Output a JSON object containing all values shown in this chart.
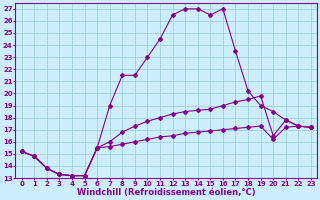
{
  "xlabel": "Windchill (Refroidissement éolien,°C)",
  "xlim": [
    -0.5,
    23.5
  ],
  "ylim": [
    13,
    27.5
  ],
  "xticks": [
    0,
    1,
    2,
    3,
    4,
    5,
    6,
    7,
    8,
    9,
    10,
    11,
    12,
    13,
    14,
    15,
    16,
    17,
    18,
    19,
    20,
    21,
    22,
    23
  ],
  "yticks": [
    13,
    14,
    15,
    16,
    17,
    18,
    19,
    20,
    21,
    22,
    23,
    24,
    25,
    26,
    27
  ],
  "bg_color": "#cceeff",
  "line_color": "#880088",
  "grid_color": "#99cccc",
  "series": [
    {
      "x": [
        0,
        1,
        2,
        3,
        4,
        5,
        6,
        7,
        8,
        9,
        10,
        11,
        12,
        13,
        14,
        15,
        16,
        17,
        18,
        19,
        20,
        21,
        22,
        23
      ],
      "y": [
        15.2,
        14.8,
        13.8,
        13.3,
        13.2,
        13.2,
        15.5,
        19.0,
        21.5,
        21.5,
        23.0,
        24.5,
        26.5,
        27.0,
        27.0,
        26.5,
        27.0,
        23.5,
        20.2,
        19.0,
        18.5,
        17.8,
        17.3,
        17.2
      ]
    },
    {
      "x": [
        0,
        1,
        2,
        3,
        4,
        5,
        6,
        7,
        8,
        9,
        10,
        11,
        12,
        13,
        14,
        15,
        16,
        17,
        18,
        19,
        20,
        21,
        22,
        23
      ],
      "y": [
        15.2,
        14.8,
        13.8,
        13.3,
        13.2,
        13.2,
        15.5,
        16.0,
        16.8,
        17.3,
        17.7,
        18.0,
        18.3,
        18.5,
        18.6,
        18.7,
        19.0,
        19.3,
        19.5,
        19.8,
        16.5,
        17.8,
        17.3,
        17.2
      ]
    },
    {
      "x": [
        0,
        1,
        2,
        3,
        4,
        5,
        6,
        7,
        8,
        9,
        10,
        11,
        12,
        13,
        14,
        15,
        16,
        17,
        18,
        19,
        20,
        21,
        22,
        23
      ],
      "y": [
        15.2,
        14.8,
        13.8,
        13.3,
        13.2,
        13.2,
        15.5,
        15.6,
        15.8,
        16.0,
        16.2,
        16.4,
        16.5,
        16.7,
        16.8,
        16.9,
        17.0,
        17.1,
        17.2,
        17.3,
        16.2,
        17.2,
        17.3,
        17.2
      ]
    }
  ],
  "marker": "D",
  "markersize": 2.0,
  "linewidth": 0.8,
  "tick_fontsize": 5.0,
  "label_fontsize": 6.0
}
